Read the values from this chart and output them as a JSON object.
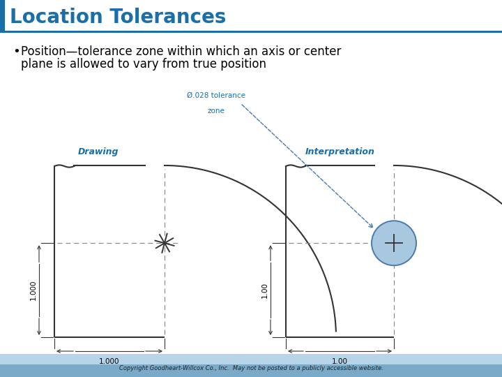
{
  "title": "Location Tolerances",
  "title_color": "#1a6fa8",
  "title_bar_color": "#1a6fa8",
  "background_color": "#ffffff",
  "bullet_text_line1": "Position—tolerance zone within which an axis or center",
  "bullet_text_line2": "plane is allowed to vary from true position",
  "drawing_label": "Drawing",
  "interpretation_label": "Interpretation",
  "tolerance_label_line1": "Ø.028 tolerance",
  "tolerance_label_line2": "zone",
  "dim_left_1": "1.000",
  "dim_bottom_1": "1.000",
  "dim_left_2": "1.00",
  "dim_bottom_2": "1.00",
  "footer_text": "Copyright Goodheart-Willcox Co., Inc.  May not be posted to a publicly accessible website.",
  "footer_bg_top": "#b8d4e8",
  "footer_bg_bot": "#7aaac8",
  "label_color": "#1a6fa8",
  "circle_fill": "#a8c8e0",
  "circle_edge": "#4a7aaa",
  "line_color": "#333333",
  "dash_color": "#888888",
  "arrow_color": "#4a7aaa"
}
